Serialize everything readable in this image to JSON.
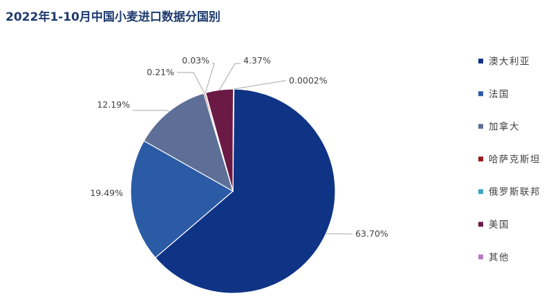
{
  "chart_data": {
    "type": "pie",
    "title": "2022年1-10月中国小麦进口数据分国别",
    "categories": [
      "澳大利亚",
      "法国",
      "加拿大",
      "哈萨克斯坦",
      "俄罗斯联邦",
      "美国",
      "其他"
    ],
    "values": [
      63.7,
      19.49,
      12.19,
      0.21,
      0.03,
      4.37,
      0.0002
    ],
    "labels": [
      "63.70%",
      "19.49%",
      "12.19%",
      "0.21%",
      "0.03%",
      "4.37%",
      "0.0002%"
    ],
    "legend": "right"
  },
  "colors": [
    "#0f3486",
    "#2c5ba6",
    "#5d6f96",
    "#9b1b1b",
    "#3fa6bf",
    "#6b1a46",
    "#b57cc0"
  ]
}
